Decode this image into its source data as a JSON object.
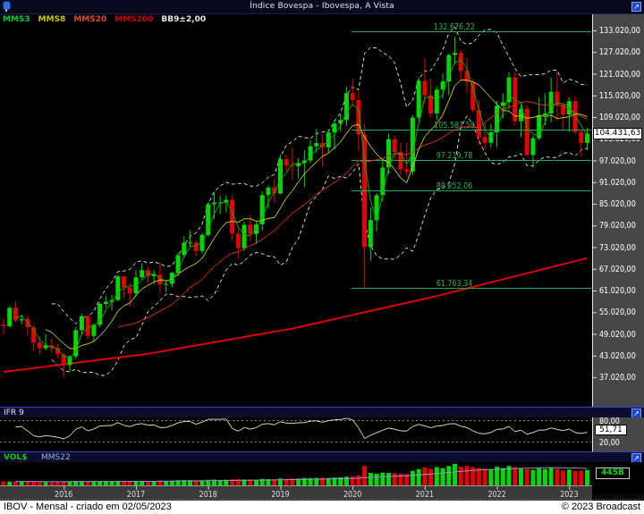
{
  "window": {
    "title": "Índice Bovespa - Ibovespa, A Vista"
  },
  "legend": {
    "items": [
      {
        "label": "MMS3",
        "color": "#00cc33"
      },
      {
        "label": "MMS8",
        "color": "#c8c800"
      },
      {
        "label": "MMS20",
        "color": "#e0482a"
      },
      {
        "label": "MMS200",
        "color": "#cc0000"
      },
      {
        "label": "BB9±2,00",
        "color": "#e8e8e8"
      }
    ]
  },
  "panels": {
    "ifr": {
      "title": "IFR 9",
      "last_label": "51,71",
      "guide_labels": [
        "80,00",
        "20,00"
      ]
    },
    "volume": {
      "title": "VOL$",
      "ma_label": "MMS22",
      "last_label": "445B"
    }
  },
  "badges": {
    "last_price": "104.431,63"
  },
  "status_bar": {
    "left": "IBOV - Mensal - criado em 02/05/2023",
    "right": "© 2023 Broadcast"
  },
  "chart_data": {
    "type": "candlestick",
    "title": "Índice Bovespa - Ibovespa, A Vista",
    "period": "Mensal",
    "start": {
      "year": 2015,
      "month": 3
    },
    "y_axis": {
      "min": 37020,
      "max": 133020,
      "step": 6000
    },
    "x_axis": {
      "year_labels": [
        "2016",
        "2017",
        "2018",
        "2019",
        "2020",
        "2021",
        "2022",
        "2023"
      ]
    },
    "levels": {
      "values": [
        132676.22,
        105587.5,
        97219.78,
        88852.06,
        61763.34
      ],
      "labels": [
        "132.676,22",
        "105.587,50",
        "97.219,78",
        "88.852,06",
        "61.763,34"
      ],
      "color": "#1faf54"
    },
    "overlays": {
      "mms3": 3,
      "mms8": 8,
      "mms20": 20,
      "bb_period": 9,
      "bb_mult": 2
    },
    "mms200_points": [
      [
        0,
        38500
      ],
      [
        24,
        43500
      ],
      [
        48,
        50500
      ],
      [
        72,
        59500
      ],
      [
        97,
        70000
      ]
    ],
    "rsi": {
      "period": 9,
      "guides": [
        80,
        20
      ],
      "last": 51.71
    },
    "volume": {
      "mms_period": 22,
      "scale_max": 620,
      "last": 445
    },
    "colors": {
      "up": "#00d800",
      "down": "#e80000",
      "mms3": "#00b400",
      "mms8": "#cfcf00",
      "mms20": "#e03020",
      "mms200": "#dd0000",
      "bb": "#dedede",
      "rsi": "#dcdcdc",
      "vol_ma": "#9898d8",
      "axis_bg": "#474747",
      "grid": "#888888"
    },
    "candles": [
      [
        51583,
        53200,
        48900,
        51150,
        118
      ],
      [
        51150,
        56700,
        50800,
        56229,
        112
      ],
      [
        56229,
        58000,
        52300,
        52760,
        108
      ],
      [
        52760,
        54400,
        51600,
        53081,
        105
      ],
      [
        53081,
        53900,
        48500,
        50865,
        112
      ],
      [
        50865,
        51300,
        44300,
        46626,
        118
      ],
      [
        46626,
        48100,
        43500,
        45059,
        104
      ],
      [
        45059,
        48900,
        44500,
        45869,
        98
      ],
      [
        45869,
        47700,
        44000,
        45120,
        95
      ],
      [
        45120,
        46200,
        42300,
        43350,
        102
      ],
      [
        43350,
        43600,
        37046,
        40406,
        108
      ],
      [
        40406,
        43200,
        38600,
        42794,
        112
      ],
      [
        42794,
        51000,
        42100,
        50055,
        128
      ],
      [
        50055,
        54600,
        48700,
        53911,
        122
      ],
      [
        53911,
        54200,
        47600,
        48472,
        116
      ],
      [
        48472,
        51900,
        46900,
        51527,
        120
      ],
      [
        51527,
        57800,
        50800,
        57308,
        122
      ],
      [
        57308,
        59500,
        56200,
        57901,
        126
      ],
      [
        57901,
        59800,
        55500,
        58367,
        120
      ],
      [
        58367,
        65300,
        58000,
        64925,
        132
      ],
      [
        64925,
        65000,
        58800,
        61906,
        128
      ],
      [
        61906,
        63000,
        56800,
        60227,
        116
      ],
      [
        60227,
        66600,
        59400,
        64671,
        126
      ],
      [
        64671,
        68600,
        64000,
        66662,
        132
      ],
      [
        66662,
        67400,
        63200,
        64984,
        130
      ],
      [
        64984,
        66700,
        62800,
        65403,
        122
      ],
      [
        65403,
        68800,
        60300,
        62711,
        142
      ],
      [
        62711,
        63800,
        60600,
        62900,
        134
      ],
      [
        62900,
        66300,
        61900,
        65920,
        136
      ],
      [
        65920,
        71500,
        65000,
        70835,
        148
      ],
      [
        70835,
        76000,
        70200,
        74294,
        152
      ],
      [
        74294,
        77600,
        73100,
        74308,
        150
      ],
      [
        74308,
        75000,
        70500,
        71971,
        142
      ],
      [
        71971,
        77000,
        71200,
        76402,
        140
      ],
      [
        76402,
        85530,
        76000,
        84913,
        162
      ],
      [
        84913,
        88318,
        80800,
        85354,
        168
      ],
      [
        85354,
        87200,
        82300,
        85366,
        158
      ],
      [
        85366,
        87300,
        82600,
        86116,
        164
      ],
      [
        86116,
        87500,
        74800,
        76754,
        178
      ],
      [
        76754,
        78100,
        69815,
        72763,
        184
      ],
      [
        72763,
        80000,
        71900,
        79220,
        168
      ],
      [
        79220,
        81900,
        74600,
        76678,
        172
      ],
      [
        76678,
        80100,
        74100,
        79342,
        162
      ],
      [
        79342,
        88400,
        77700,
        87424,
        188
      ],
      [
        87424,
        90100,
        83700,
        89504,
        182
      ],
      [
        89504,
        91800,
        85300,
        87887,
        172
      ],
      [
        87887,
        98600,
        87600,
        97394,
        198
      ],
      [
        97394,
        98600,
        93800,
        95584,
        192
      ],
      [
        95584,
        100439,
        91700,
        95415,
        204
      ],
      [
        95415,
        97600,
        92200,
        96353,
        198
      ],
      [
        96353,
        99800,
        89600,
        97030,
        214
      ],
      [
        97030,
        102600,
        96300,
        100967,
        208
      ],
      [
        100967,
        105800,
        99100,
        101812,
        218
      ],
      [
        101812,
        104200,
        95300,
        100626,
        224
      ],
      [
        100626,
        105700,
        99000,
        104745,
        214
      ],
      [
        104745,
        108300,
        100100,
        107220,
        228
      ],
      [
        107220,
        110000,
        105100,
        108233,
        234
      ],
      [
        108233,
        117300,
        106600,
        115645,
        254
      ],
      [
        115645,
        119593,
        112100,
        113761,
        265
      ],
      [
        113761,
        116100,
        99600,
        104172,
        290
      ],
      [
        104172,
        107224,
        61690,
        73020,
        560
      ],
      [
        73020,
        84000,
        69300,
        80506,
        360
      ],
      [
        80506,
        88000,
        77400,
        87403,
        340
      ],
      [
        87403,
        97600,
        85700,
        95056,
        370
      ],
      [
        95056,
        104400,
        93200,
        102912,
        360
      ],
      [
        102912,
        104000,
        97300,
        99369,
        350
      ],
      [
        99369,
        102000,
        93000,
        94603,
        335
      ],
      [
        94603,
        102000,
        92700,
        93952,
        330
      ],
      [
        93952,
        109500,
        93000,
        108893,
        420
      ],
      [
        108893,
        119960,
        107800,
        119017,
        470
      ],
      [
        119017,
        125324,
        112700,
        115068,
        520
      ],
      [
        115068,
        119720,
        109000,
        110035,
        480
      ],
      [
        110035,
        117400,
        108200,
        116634,
        530
      ],
      [
        116634,
        121100,
        114200,
        118894,
        500
      ],
      [
        118894,
        126600,
        115100,
        126216,
        560
      ],
      [
        126216,
        131190,
        123700,
        126802,
        620
      ],
      [
        126802,
        127600,
        118900,
        121800,
        540
      ],
      [
        121800,
        125300,
        115700,
        118781,
        560
      ],
      [
        118781,
        119500,
        110300,
        110979,
        530
      ],
      [
        110979,
        113600,
        101400,
        103501,
        500
      ],
      [
        103501,
        107300,
        100074,
        101915,
        480
      ],
      [
        101915,
        107200,
        100600,
        104822,
        460
      ],
      [
        104822,
        113500,
        100700,
        112143,
        540
      ],
      [
        112143,
        115500,
        108600,
        113142,
        500
      ],
      [
        113142,
        121500,
        111100,
        119999,
        560
      ],
      [
        119999,
        121570,
        106600,
        107876,
        530
      ],
      [
        107876,
        112700,
        103500,
        111351,
        490
      ],
      [
        111351,
        112300,
        98100,
        98542,
        470
      ],
      [
        98542,
        104000,
        95094,
        103165,
        450
      ],
      [
        103165,
        114500,
        102600,
        109523,
        490
      ],
      [
        109523,
        115500,
        106800,
        110037,
        470
      ],
      [
        110037,
        120000,
        107600,
        116037,
        510
      ],
      [
        116037,
        121628,
        108281,
        112486,
        480
      ],
      [
        112486,
        112600,
        105200,
        109735,
        430
      ],
      [
        109735,
        114500,
        104900,
        113431,
        460
      ],
      [
        113431,
        114600,
        104300,
        104932,
        420
      ],
      [
        104932,
        105500,
        97926,
        101882,
        430
      ],
      [
        101882,
        106100,
        99800,
        104432,
        445
      ]
    ]
  }
}
